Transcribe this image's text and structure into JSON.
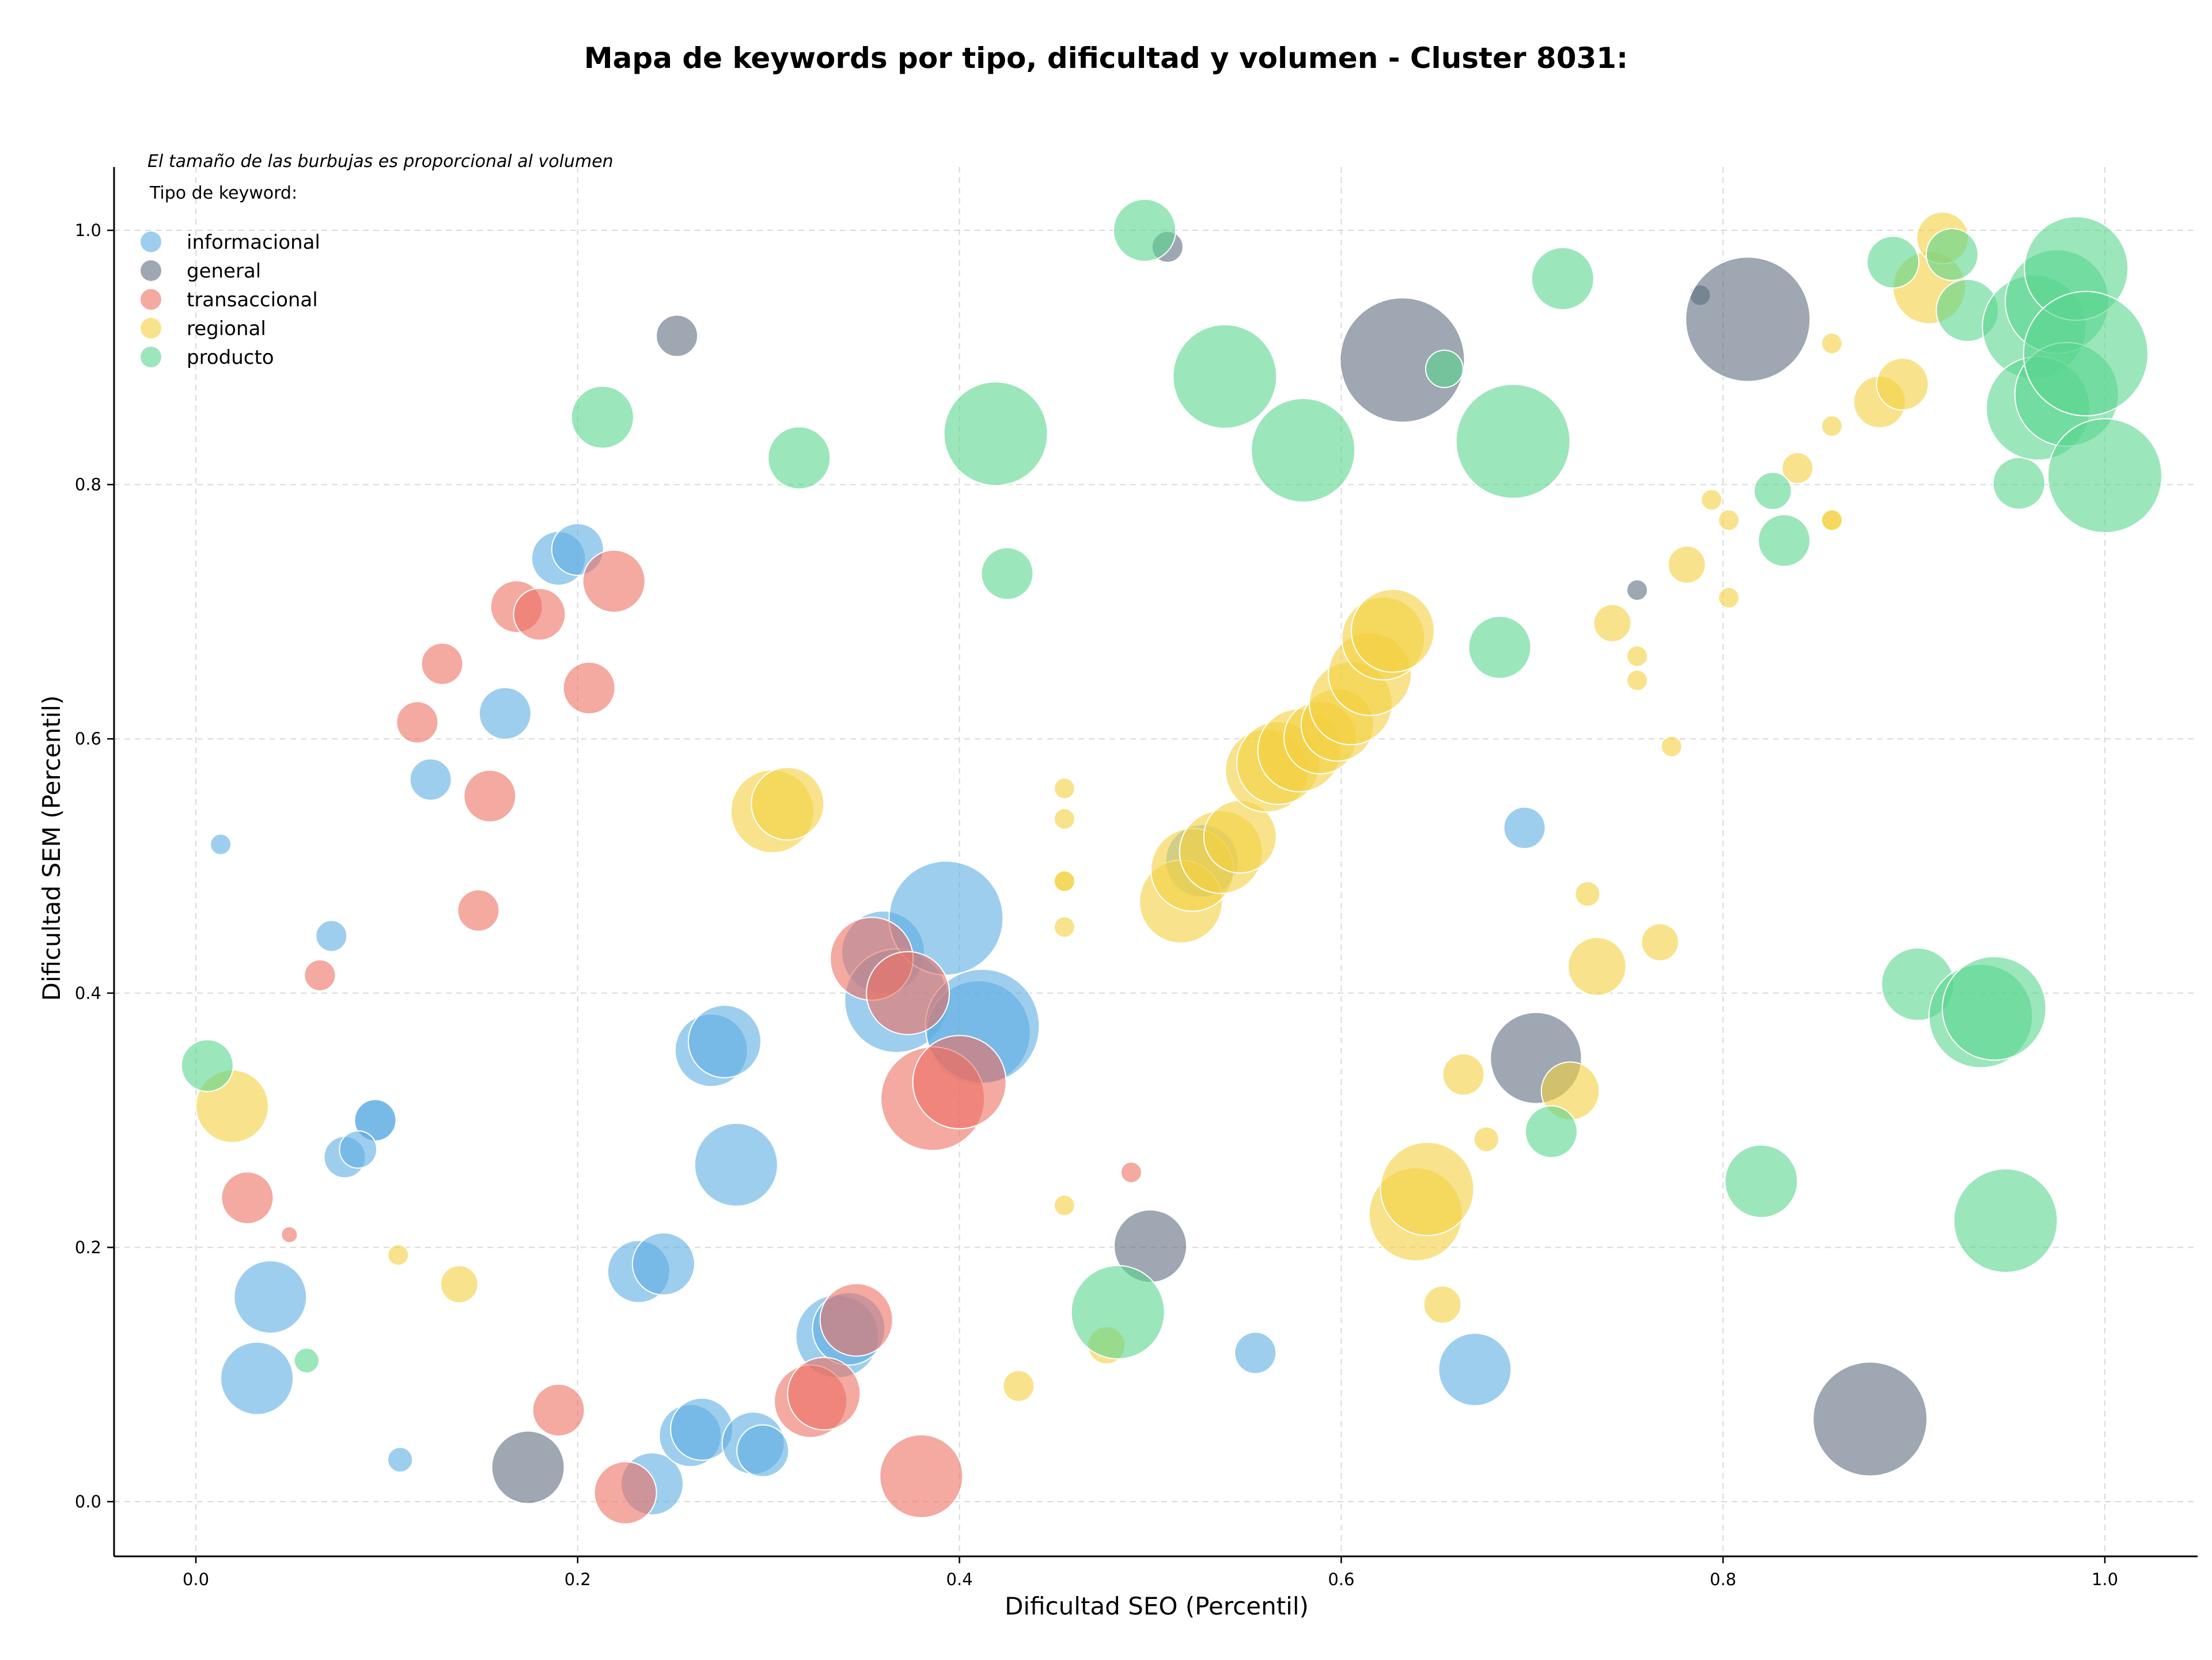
{
  "chart_data": {
    "type": "scatter",
    "title": "Mapa de keywords por tipo, dificultad y volumen - Cluster 8031:",
    "xlabel": "Dificultad SEO (Percentil)",
    "ylabel": "Dificultad SEM (Percentil)",
    "xlim": [
      -0.04,
      1.05
    ],
    "ylim": [
      -0.04,
      1.05
    ],
    "xticks": [
      "0.0",
      "0.2",
      "0.4",
      "0.6",
      "0.8",
      "1.0"
    ],
    "yticks": [
      "0.0",
      "0.2",
      "0.4",
      "0.6",
      "0.8",
      "1.0"
    ],
    "grid": "dashed, light",
    "bubble_note": "El tamaño de las burbujas es proporcional al volumen",
    "legend_title": "Tipo de keyword:",
    "legend_position": "top-left",
    "series": [
      {
        "name": "informacional",
        "color": "#5DADE2",
        "points": [
          [
            0.013,
            0.517,
            0.5
          ],
          [
            0.071,
            0.445,
            0.75
          ],
          [
            0.123,
            0.568,
            1.0
          ],
          [
            0.162,
            0.62,
            1.25
          ],
          [
            0.19,
            0.742,
            1.3
          ],
          [
            0.2,
            0.749,
            1.25
          ],
          [
            0.094,
            0.3,
            1.0
          ],
          [
            0.094,
            0.3,
            1.0
          ],
          [
            0.078,
            0.271,
            1.0
          ],
          [
            0.085,
            0.277,
            0.9
          ],
          [
            0.039,
            0.161,
            1.75
          ],
          [
            0.032,
            0.097,
            1.75
          ],
          [
            0.107,
            0.033,
            0.6
          ],
          [
            0.232,
            0.181,
            1.5
          ],
          [
            0.245,
            0.187,
            1.5
          ],
          [
            0.239,
            0.014,
            1.5
          ],
          [
            0.259,
            0.052,
            1.5
          ],
          [
            0.265,
            0.057,
            1.5
          ],
          [
            0.292,
            0.046,
            1.5
          ],
          [
            0.297,
            0.04,
            1.25
          ],
          [
            0.27,
            0.355,
            1.75
          ],
          [
            0.277,
            0.362,
            1.75
          ],
          [
            0.283,
            0.265,
            2.0
          ],
          [
            0.336,
            0.13,
            2.0
          ],
          [
            0.342,
            0.136,
            1.75
          ],
          [
            0.36,
            0.432,
            2.0
          ],
          [
            0.367,
            0.394,
            2.5
          ],
          [
            0.393,
            0.459,
            2.75
          ],
          [
            0.41,
            0.369,
            2.5
          ],
          [
            0.412,
            0.374,
            2.75
          ],
          [
            0.527,
            0.504,
            1.75
          ],
          [
            0.555,
            0.117,
            1.0
          ],
          [
            0.67,
            0.104,
            1.75
          ],
          [
            0.696,
            0.53,
            1.0
          ]
        ]
      },
      {
        "name": "general",
        "color": "#5D6D7E",
        "points": [
          [
            0.252,
            0.917,
            1.0
          ],
          [
            0.174,
            0.027,
            1.75
          ],
          [
            0.509,
            0.987,
            0.75
          ],
          [
            0.5,
            0.201,
            1.75
          ],
          [
            0.632,
            0.898,
            3.0
          ],
          [
            0.702,
            0.349,
            2.2
          ],
          [
            0.755,
            0.717,
            0.5
          ],
          [
            0.788,
            0.949,
            0.5
          ],
          [
            0.813,
            0.93,
            3.0
          ],
          [
            0.877,
            0.065,
            2.75
          ]
        ]
      },
      {
        "name": "transaccional",
        "color": "#EC7063",
        "points": [
          [
            0.065,
            0.414,
            0.75
          ],
          [
            0.027,
            0.239,
            1.25
          ],
          [
            0.049,
            0.21,
            0.3
          ],
          [
            0.116,
            0.613,
            1.0
          ],
          [
            0.129,
            0.659,
            1.0
          ],
          [
            0.148,
            0.465,
            1.0
          ],
          [
            0.154,
            0.555,
            1.25
          ],
          [
            0.168,
            0.704,
            1.25
          ],
          [
            0.18,
            0.698,
            1.25
          ],
          [
            0.206,
            0.64,
            1.25
          ],
          [
            0.219,
            0.724,
            1.5
          ],
          [
            0.19,
            0.072,
            1.25
          ],
          [
            0.225,
            0.007,
            1.5
          ],
          [
            0.322,
            0.079,
            1.75
          ],
          [
            0.329,
            0.085,
            1.75
          ],
          [
            0.346,
            0.143,
            1.75
          ],
          [
            0.354,
            0.427,
            2.0
          ],
          [
            0.373,
            0.4,
            2.0
          ],
          [
            0.38,
            0.02,
            2.0
          ],
          [
            0.386,
            0.317,
            2.5
          ],
          [
            0.4,
            0.33,
            2.25
          ],
          [
            0.49,
            0.259,
            0.5
          ]
        ]
      },
      {
        "name": "regional",
        "color": "#F4D03F",
        "points": [
          [
            0.019,
            0.311,
            1.75
          ],
          [
            0.106,
            0.194,
            0.5
          ],
          [
            0.138,
            0.171,
            0.9
          ],
          [
            0.302,
            0.543,
            2.0
          ],
          [
            0.31,
            0.549,
            1.75
          ],
          [
            0.431,
            0.091,
            0.75
          ],
          [
            0.455,
            0.561,
            0.5
          ],
          [
            0.455,
            0.537,
            0.5
          ],
          [
            0.455,
            0.488,
            0.5
          ],
          [
            0.455,
            0.488,
            0.5
          ],
          [
            0.455,
            0.452,
            0.5
          ],
          [
            0.455,
            0.233,
            0.5
          ],
          [
            0.477,
            0.123,
            0.9
          ],
          [
            0.516,
            0.472,
            2.0
          ],
          [
            0.522,
            0.497,
            2.0
          ],
          [
            0.537,
            0.511,
            2.0
          ],
          [
            0.547,
            0.523,
            1.75
          ],
          [
            0.561,
            0.575,
            2.0
          ],
          [
            0.567,
            0.581,
            2.0
          ],
          [
            0.578,
            0.591,
            2.0
          ],
          [
            0.589,
            0.601,
            1.75
          ],
          [
            0.598,
            0.611,
            1.75
          ],
          [
            0.605,
            0.628,
            2.0
          ],
          [
            0.615,
            0.651,
            2.0
          ],
          [
            0.622,
            0.679,
            2.0
          ],
          [
            0.627,
            0.685,
            2.0
          ],
          [
            0.639,
            0.226,
            2.25
          ],
          [
            0.645,
            0.246,
            2.25
          ],
          [
            0.653,
            0.155,
            0.9
          ],
          [
            0.664,
            0.336,
            1.0
          ],
          [
            0.676,
            0.285,
            0.6
          ],
          [
            0.72,
            0.323,
            1.4
          ],
          [
            0.729,
            0.478,
            0.6
          ],
          [
            0.734,
            0.421,
            1.4
          ],
          [
            0.742,
            0.691,
            0.9
          ],
          [
            0.755,
            0.665,
            0.5
          ],
          [
            0.755,
            0.646,
            0.5
          ],
          [
            0.767,
            0.44,
            0.9
          ],
          [
            0.773,
            0.594,
            0.5
          ],
          [
            0.781,
            0.737,
            0.9
          ],
          [
            0.794,
            0.788,
            0.5
          ],
          [
            0.803,
            0.772,
            0.5
          ],
          [
            0.803,
            0.711,
            0.5
          ],
          [
            0.839,
            0.813,
            0.75
          ],
          [
            0.857,
            0.911,
            0.5
          ],
          [
            0.857,
            0.846,
            0.5
          ],
          [
            0.857,
            0.772,
            0.5
          ],
          [
            0.857,
            0.772,
            0.5
          ],
          [
            0.882,
            0.865,
            1.25
          ],
          [
            0.894,
            0.879,
            1.25
          ],
          [
            0.908,
            0.955,
            1.75
          ],
          [
            0.915,
            0.994,
            1.25
          ]
        ]
      },
      {
        "name": "producto",
        "color": "#58D68D",
        "points": [
          [
            0.006,
            0.343,
            1.25
          ],
          [
            0.058,
            0.111,
            0.6
          ],
          [
            0.213,
            0.853,
            1.5
          ],
          [
            0.316,
            0.821,
            1.5
          ],
          [
            0.419,
            0.84,
            2.5
          ],
          [
            0.425,
            0.73,
            1.25
          ],
          [
            0.483,
            0.149,
            2.25
          ],
          [
            0.497,
            1.0,
            1.5
          ],
          [
            0.539,
            0.885,
            2.5
          ],
          [
            0.58,
            0.827,
            2.5
          ],
          [
            0.654,
            0.891,
            0.9
          ],
          [
            0.683,
            0.672,
            1.5
          ],
          [
            0.69,
            0.834,
            2.75
          ],
          [
            0.71,
            0.291,
            1.25
          ],
          [
            0.716,
            0.962,
            1.5
          ],
          [
            0.82,
            0.252,
            1.75
          ],
          [
            0.826,
            0.795,
            0.9
          ],
          [
            0.832,
            0.756,
            1.25
          ],
          [
            0.889,
            0.975,
            1.25
          ],
          [
            0.902,
            0.407,
            1.75
          ],
          [
            0.92,
            0.981,
            1.25
          ],
          [
            0.928,
            0.937,
            1.5
          ],
          [
            0.935,
            0.382,
            2.5
          ],
          [
            0.942,
            0.388,
            2.5
          ],
          [
            0.948,
            0.221,
            2.5
          ],
          [
            0.955,
            0.801,
            1.25
          ],
          [
            0.963,
            0.924,
            2.5
          ],
          [
            0.965,
            0.86,
            2.5
          ],
          [
            0.975,
            0.944,
            2.5
          ],
          [
            0.98,
            0.871,
            2.5
          ],
          [
            0.985,
            0.97,
            2.5
          ],
          [
            0.99,
            0.903,
            3.0
          ],
          [
            1.0,
            0.807,
            2.75
          ]
        ]
      }
    ]
  }
}
